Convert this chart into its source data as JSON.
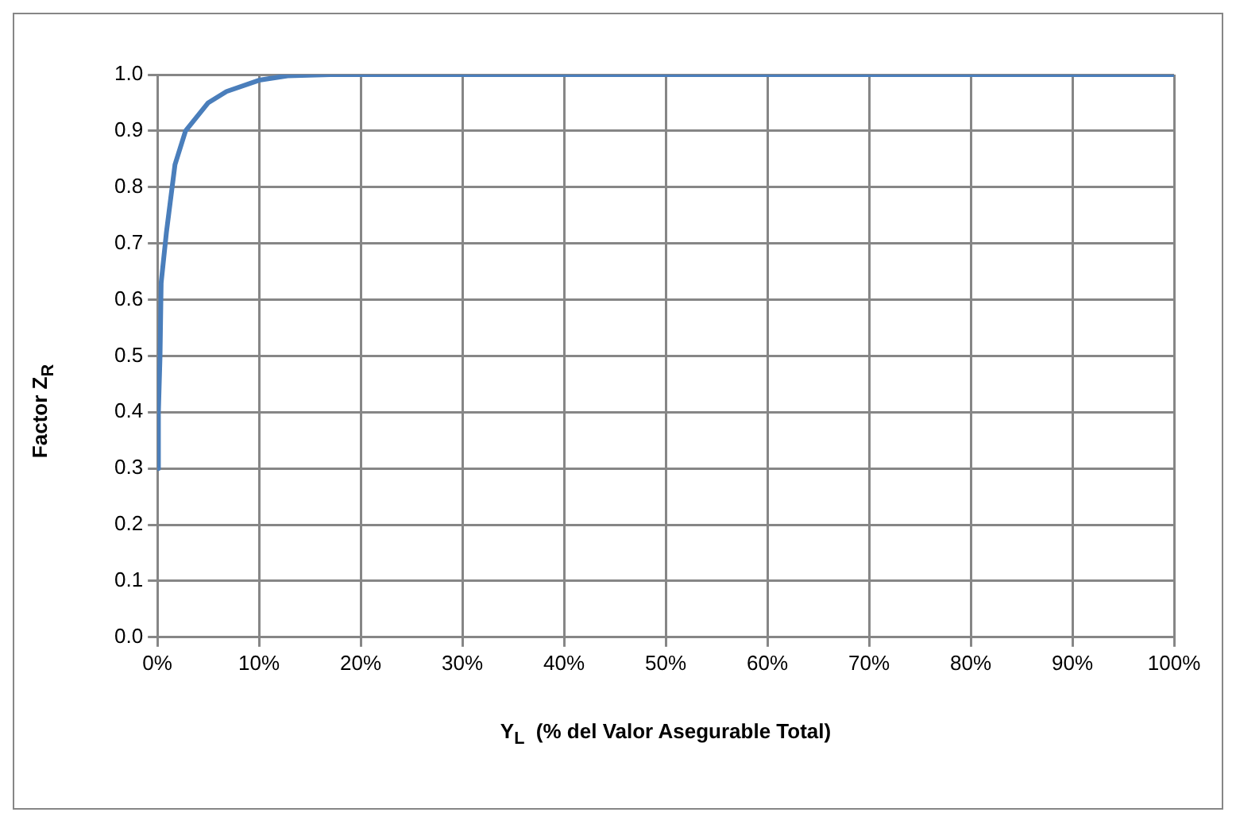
{
  "chart_data": {
    "type": "line",
    "xlabel": "Y$_{L}$  (% del Valor Asegurable Total)",
    "ylabel": "Factor Z$_{R}$",
    "series": [
      {
        "color": "#4a7ebb",
        "x": [
          0,
          0.1,
          0.26,
          0.37,
          0.89,
          1.73,
          2.77,
          5.0,
          6.8,
          10,
          12.8,
          17,
          20,
          30,
          40,
          50,
          60,
          70,
          80,
          90,
          100
        ],
        "values": [
          0.3,
          0.4,
          0.5,
          0.63,
          0.72,
          0.84,
          0.9,
          0.95,
          0.97,
          0.99,
          0.998,
          1.0,
          1.0,
          1.0,
          1.0,
          1.0,
          1.0,
          1.0,
          1.0,
          1.0,
          1.0
        ]
      }
    ],
    "xlim": [
      0,
      100
    ],
    "xticks": [
      {
        "value": 0,
        "label": "0%"
      },
      {
        "value": 10,
        "label": "10%"
      },
      {
        "value": 20,
        "label": "20%"
      },
      {
        "value": 30,
        "label": "30%"
      },
      {
        "value": 40,
        "label": "40%"
      },
      {
        "value": 50,
        "label": "50%"
      },
      {
        "value": 60,
        "label": "60%"
      },
      {
        "value": 70,
        "label": "70%"
      },
      {
        "value": 80,
        "label": "80%"
      },
      {
        "value": 90,
        "label": "90%"
      },
      {
        "value": 100,
        "label": "100%"
      }
    ],
    "ylim": [
      0,
      1
    ],
    "yticks": [
      {
        "value": 0,
        "label": "0.0"
      },
      {
        "value": 0.1,
        "label": "0.1"
      },
      {
        "value": 0.2,
        "label": "0.2"
      },
      {
        "value": 0.3,
        "label": "0.3"
      },
      {
        "value": 0.4,
        "label": "0.4"
      },
      {
        "value": 0.5,
        "label": "0.5"
      },
      {
        "value": 0.6,
        "label": "0.6"
      },
      {
        "value": 0.7,
        "label": "0.7"
      },
      {
        "value": 0.8,
        "label": "0.8"
      },
      {
        "value": 0.9,
        "label": "0.9"
      },
      {
        "value": 1,
        "label": "1.0"
      }
    ],
    "grid": true,
    "legend": false,
    "marker": "none",
    "line_style": "solid"
  }
}
